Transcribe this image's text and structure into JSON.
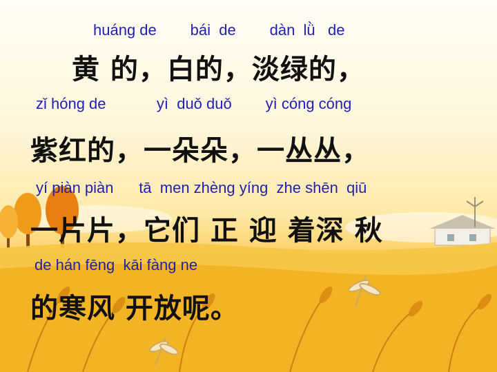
{
  "lines": [
    {
      "pinyin": "huáng de        bái  de        dàn  lǜ   de",
      "hanzi": "黄 的，白的，淡绿的，"
    },
    {
      "pinyin": "zǐ hóng de            yì  duǒ duǒ        yì cóng cóng",
      "hanzi": "紫红的，一朵朵，一丛丛，"
    },
    {
      "pinyin": "yí piàn piàn      tā  men zhèng yíng  zhe shēn  qiū",
      "hanzi": "一片片，它们 正 迎 着深 秋"
    },
    {
      "pinyin": "de hán fēng  kāi fàng ne",
      "hanzi": "的寒风 开放呢。"
    }
  ]
}
